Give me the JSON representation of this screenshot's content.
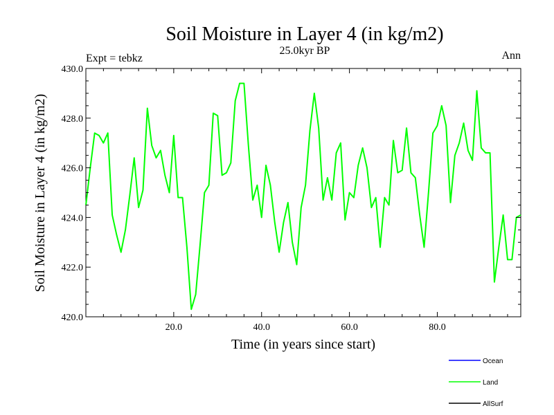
{
  "chart_data": {
    "type": "line",
    "title": "Soil Moisture in Layer 4 (in kg/m2)",
    "subtitle": "25.0kyr BP",
    "left_label": "Expt = tebkz",
    "right_label": "Ann",
    "xlabel": "Time (in years since start)",
    "ylabel": "Soil Moisture in Layer 4 (in kg/m2)",
    "xlim": [
      0,
      99
    ],
    "ylim": [
      420,
      430
    ],
    "xticks": [
      20,
      40,
      60,
      80
    ],
    "xtick_labels": [
      "20.0",
      "40.0",
      "60.0",
      "80.0"
    ],
    "yticks": [
      420,
      422,
      424,
      426,
      428,
      430
    ],
    "ytick_labels": [
      "420.0",
      "422.0",
      "424.0",
      "426.0",
      "428.0",
      "430.0"
    ],
    "legend": [
      {
        "name": "Ocean",
        "color": "#0000ff"
      },
      {
        "name": "Land",
        "color": "#00ff00"
      },
      {
        "name": "AllSurf",
        "color": "#000000"
      }
    ],
    "series": [
      {
        "name": "Land",
        "color": "#00ff00",
        "x": [
          0,
          1,
          2,
          3,
          4,
          5,
          6,
          7,
          8,
          9,
          10,
          11,
          12,
          13,
          14,
          15,
          16,
          17,
          18,
          19,
          20,
          21,
          22,
          23,
          24,
          25,
          26,
          27,
          28,
          29,
          30,
          31,
          32,
          33,
          34,
          35,
          36,
          37,
          38,
          39,
          40,
          41,
          42,
          43,
          44,
          45,
          46,
          47,
          48,
          49,
          50,
          51,
          52,
          53,
          54,
          55,
          56,
          57,
          58,
          59,
          60,
          61,
          62,
          63,
          64,
          65,
          66,
          67,
          68,
          69,
          70,
          71,
          72,
          73,
          74,
          75,
          76,
          77,
          78,
          79,
          80,
          81,
          82,
          83,
          84,
          85,
          86,
          87,
          88,
          89,
          90,
          91,
          92,
          93,
          94,
          95,
          96,
          97,
          98,
          99
        ],
        "values": [
          424.5,
          426.0,
          427.4,
          427.3,
          427.0,
          427.4,
          424.1,
          423.3,
          422.6,
          423.5,
          424.9,
          426.4,
          424.4,
          425.1,
          428.4,
          426.9,
          426.4,
          426.7,
          425.7,
          425.0,
          427.3,
          424.8,
          424.8,
          422.8,
          420.3,
          420.9,
          422.9,
          425.0,
          425.3,
          428.2,
          428.1,
          425.7,
          425.8,
          426.2,
          428.7,
          429.4,
          429.4,
          426.9,
          424.7,
          425.3,
          424.0,
          426.1,
          425.3,
          423.8,
          422.6,
          423.8,
          424.6,
          423.0,
          422.1,
          424.4,
          425.3,
          427.5,
          429.0,
          427.6,
          424.7,
          425.6,
          424.7,
          426.6,
          427.0,
          423.9,
          425.0,
          424.8,
          426.1,
          426.8,
          426.0,
          424.4,
          424.8,
          422.8,
          424.8,
          424.5,
          427.1,
          425.8,
          425.9,
          427.6,
          425.8,
          425.6,
          424.1,
          422.8,
          425.0,
          427.4,
          427.7,
          428.5,
          427.7,
          424.6,
          426.5,
          427.0,
          427.8,
          426.7,
          426.3,
          429.1,
          426.8,
          426.6,
          426.6,
          421.4,
          422.8,
          424.1,
          422.3,
          422.3,
          424.0,
          424.1
        ]
      }
    ]
  }
}
